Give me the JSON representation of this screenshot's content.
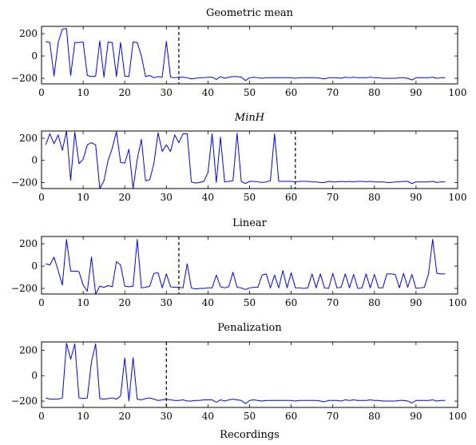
{
  "chart_data": [
    {
      "type": "line",
      "title": "Geometric mean",
      "title_style": "normal",
      "xlabel": "",
      "ylabel": "",
      "xlim": [
        0,
        100
      ],
      "ylim": [
        -250,
        265
      ],
      "xticks": [
        0,
        10,
        20,
        30,
        40,
        50,
        60,
        70,
        80,
        90,
        100
      ],
      "yticks": [
        -200,
        0,
        200
      ],
      "line_color": "#0000ff",
      "marker_x": 33,
      "grid": false,
      "x": [
        1,
        2,
        3,
        4,
        5,
        6,
        7,
        8,
        9,
        10,
        11,
        12,
        13,
        14,
        15,
        16,
        17,
        18,
        19,
        20,
        21,
        22,
        23,
        24,
        25,
        26,
        27,
        28,
        29,
        30,
        31,
        32,
        33,
        34,
        35,
        36,
        37,
        38,
        39,
        40,
        41,
        42,
        43,
        44,
        45,
        46,
        47,
        48,
        49,
        50,
        51,
        52,
        53,
        54,
        55,
        56,
        57,
        58,
        59,
        60,
        61,
        62,
        63,
        64,
        65,
        66,
        67,
        68,
        69,
        70,
        71,
        72,
        73,
        74,
        75,
        76,
        77,
        78,
        79,
        80,
        81,
        82,
        83,
        84,
        85,
        86,
        87,
        88,
        89,
        90,
        91,
        92,
        93,
        94,
        95,
        96,
        97
      ],
      "y": [
        130,
        120,
        -180,
        120,
        240,
        245,
        -175,
        120,
        120,
        125,
        -175,
        -185,
        -180,
        135,
        -190,
        125,
        120,
        -185,
        120,
        -180,
        -185,
        125,
        120,
        0,
        -185,
        -175,
        -195,
        -185,
        -190,
        130,
        -190,
        -195,
        -190,
        -190,
        -195,
        -205,
        -200,
        -195,
        -195,
        -190,
        -190,
        -210,
        -185,
        -200,
        -190,
        -185,
        -185,
        -190,
        -220,
        -195,
        -190,
        -195,
        -200,
        -195,
        -195,
        -195,
        -195,
        -195,
        -195,
        -195,
        -200,
        -195,
        -195,
        -195,
        -195,
        -195,
        -200,
        -205,
        -195,
        -195,
        -195,
        -200,
        -190,
        -195,
        -190,
        -195,
        -195,
        -195,
        -190,
        -195,
        -195,
        -200,
        -200,
        -200,
        -200,
        -195,
        -195,
        -200,
        -215,
        -195,
        -195,
        -195,
        -195,
        -190,
        -200,
        -195,
        -195
      ]
    },
    {
      "type": "line",
      "title": "MinH",
      "title_style": "italic",
      "xlabel": "",
      "ylabel": "",
      "xlim": [
        0,
        100
      ],
      "ylim": [
        -255,
        265
      ],
      "xticks": [
        0,
        10,
        20,
        30,
        40,
        50,
        60,
        70,
        80,
        90,
        100
      ],
      "yticks": [
        -200,
        0,
        200
      ],
      "line_color": "#0000ff",
      "marker_x": 61,
      "grid": false,
      "x": [
        1,
        2,
        3,
        4,
        5,
        6,
        7,
        8,
        9,
        10,
        11,
        12,
        13,
        14,
        15,
        16,
        17,
        18,
        19,
        20,
        21,
        22,
        23,
        24,
        25,
        26,
        27,
        28,
        29,
        30,
        31,
        32,
        33,
        34,
        35,
        36,
        37,
        38,
        39,
        40,
        41,
        42,
        43,
        44,
        45,
        46,
        47,
        48,
        49,
        50,
        51,
        52,
        53,
        54,
        55,
        56,
        57,
        58,
        59,
        60,
        61,
        62,
        63,
        64,
        65,
        66,
        67,
        68,
        69,
        70,
        71,
        72,
        73,
        74,
        75,
        76,
        77,
        78,
        79,
        80,
        81,
        82,
        83,
        84,
        85,
        86,
        87,
        88,
        89,
        90,
        91,
        92,
        93,
        94,
        95,
        96,
        97
      ],
      "y": [
        140,
        240,
        150,
        230,
        90,
        265,
        -180,
        255,
        -30,
        10,
        140,
        160,
        140,
        -255,
        -185,
        0,
        110,
        260,
        -20,
        -25,
        100,
        -255,
        10,
        190,
        -185,
        -175,
        -30,
        250,
        80,
        140,
        80,
        230,
        160,
        240,
        240,
        -195,
        -205,
        -200,
        -190,
        -110,
        240,
        -200,
        210,
        -195,
        -190,
        -185,
        245,
        -190,
        -210,
        -190,
        -190,
        -195,
        -200,
        -195,
        -185,
        240,
        -190,
        -190,
        -190,
        -190,
        -195,
        -190,
        -190,
        -190,
        -195,
        -195,
        -200,
        -200,
        -190,
        -195,
        -195,
        -190,
        -195,
        -190,
        -195,
        -190,
        -190,
        -195,
        -190,
        -195,
        -195,
        -195,
        -200,
        -200,
        -195,
        -195,
        -190,
        -190,
        -210,
        -195,
        -195,
        -195,
        -195,
        -190,
        -200,
        -195,
        -195
      ]
    },
    {
      "type": "line",
      "title": "Linear",
      "title_style": "normal",
      "xlabel": "",
      "ylabel": "",
      "xlim": [
        0,
        100
      ],
      "ylim": [
        -250,
        265
      ],
      "xticks": [
        0,
        10,
        20,
        30,
        40,
        50,
        60,
        70,
        80,
        90,
        100
      ],
      "yticks": [
        -200,
        0,
        200
      ],
      "line_color": "#0000ff",
      "marker_x": 33,
      "grid": false,
      "x": [
        1,
        2,
        3,
        4,
        5,
        6,
        7,
        8,
        9,
        10,
        11,
        12,
        13,
        14,
        15,
        16,
        17,
        18,
        19,
        20,
        21,
        22,
        23,
        24,
        25,
        26,
        27,
        28,
        29,
        30,
        31,
        32,
        33,
        34,
        35,
        36,
        37,
        38,
        39,
        40,
        41,
        42,
        43,
        44,
        45,
        46,
        47,
        48,
        49,
        50,
        51,
        52,
        53,
        54,
        55,
        56,
        57,
        58,
        59,
        60,
        61,
        62,
        63,
        64,
        65,
        66,
        67,
        68,
        69,
        70,
        71,
        72,
        73,
        74,
        75,
        76,
        77,
        78,
        79,
        80,
        81,
        82,
        83,
        84,
        85,
        86,
        87,
        88,
        89,
        90,
        91,
        92,
        93,
        94,
        95,
        96,
        97
      ],
      "y": [
        20,
        10,
        80,
        -40,
        -170,
        240,
        -45,
        -45,
        -50,
        -170,
        -225,
        80,
        -250,
        -180,
        -190,
        -175,
        -185,
        40,
        10,
        -180,
        -185,
        -180,
        240,
        -195,
        -190,
        -180,
        -65,
        -60,
        -195,
        -70,
        -185,
        -190,
        -190,
        -195,
        20,
        -195,
        -205,
        -200,
        -200,
        -195,
        -195,
        -80,
        -185,
        -195,
        -185,
        -55,
        -190,
        -195,
        -210,
        -195,
        -190,
        -190,
        -80,
        -70,
        -195,
        -80,
        -195,
        -40,
        -195,
        -60,
        -195,
        -195,
        -200,
        -195,
        -70,
        -195,
        -70,
        -195,
        -200,
        -65,
        -195,
        -190,
        -70,
        -195,
        -75,
        -200,
        -195,
        -70,
        -195,
        -75,
        -195,
        -195,
        -70,
        -70,
        -75,
        -195,
        -65,
        -190,
        -75,
        -200,
        -195,
        -190,
        -70,
        240,
        -65,
        -70,
        -70
      ]
    },
    {
      "type": "line",
      "title": "Penalization",
      "title_style": "normal",
      "xlabel": "Recordings",
      "ylabel": "",
      "xlim": [
        0,
        100
      ],
      "ylim": [
        -250,
        265
      ],
      "xticks": [
        0,
        10,
        20,
        30,
        40,
        50,
        60,
        70,
        80,
        90,
        100
      ],
      "yticks": [
        -200,
        0,
        200
      ],
      "line_color": "#0000ff",
      "marker_x": 30,
      "grid": false,
      "x": [
        1,
        2,
        3,
        4,
        5,
        6,
        7,
        8,
        9,
        10,
        11,
        12,
        13,
        14,
        15,
        16,
        17,
        18,
        19,
        20,
        21,
        22,
        23,
        24,
        25,
        26,
        27,
        28,
        29,
        30,
        31,
        32,
        33,
        34,
        35,
        36,
        37,
        38,
        39,
        40,
        41,
        42,
        43,
        44,
        45,
        46,
        47,
        48,
        49,
        50,
        51,
        52,
        53,
        54,
        55,
        56,
        57,
        58,
        59,
        60,
        61,
        62,
        63,
        64,
        65,
        66,
        67,
        68,
        69,
        70,
        71,
        72,
        73,
        74,
        75,
        76,
        77,
        78,
        79,
        80,
        81,
        82,
        83,
        84,
        85,
        86,
        87,
        88,
        89,
        90,
        91,
        92,
        93,
        94,
        95,
        96,
        97
      ],
      "y": [
        -175,
        -185,
        -185,
        -185,
        -175,
        255,
        130,
        250,
        -175,
        -180,
        -175,
        110,
        250,
        -180,
        -185,
        -180,
        -175,
        -185,
        -160,
        140,
        -200,
        140,
        -185,
        -190,
        -180,
        -175,
        -185,
        -195,
        -190,
        -185,
        -190,
        -195,
        -195,
        -190,
        -200,
        -200,
        -195,
        -195,
        -190,
        -190,
        -190,
        -210,
        -190,
        -200,
        -190,
        -185,
        -190,
        -195,
        -220,
        -195,
        -190,
        -195,
        -200,
        -195,
        -195,
        -195,
        -195,
        -195,
        -195,
        -195,
        -200,
        -195,
        -195,
        -195,
        -195,
        -195,
        -200,
        -205,
        -195,
        -195,
        -195,
        -200,
        -190,
        -195,
        -190,
        -195,
        -195,
        -195,
        -190,
        -195,
        -195,
        -200,
        -200,
        -200,
        -200,
        -195,
        -195,
        -200,
        -215,
        -195,
        -195,
        -195,
        -195,
        -190,
        -200,
        -195,
        -195
      ]
    }
  ]
}
